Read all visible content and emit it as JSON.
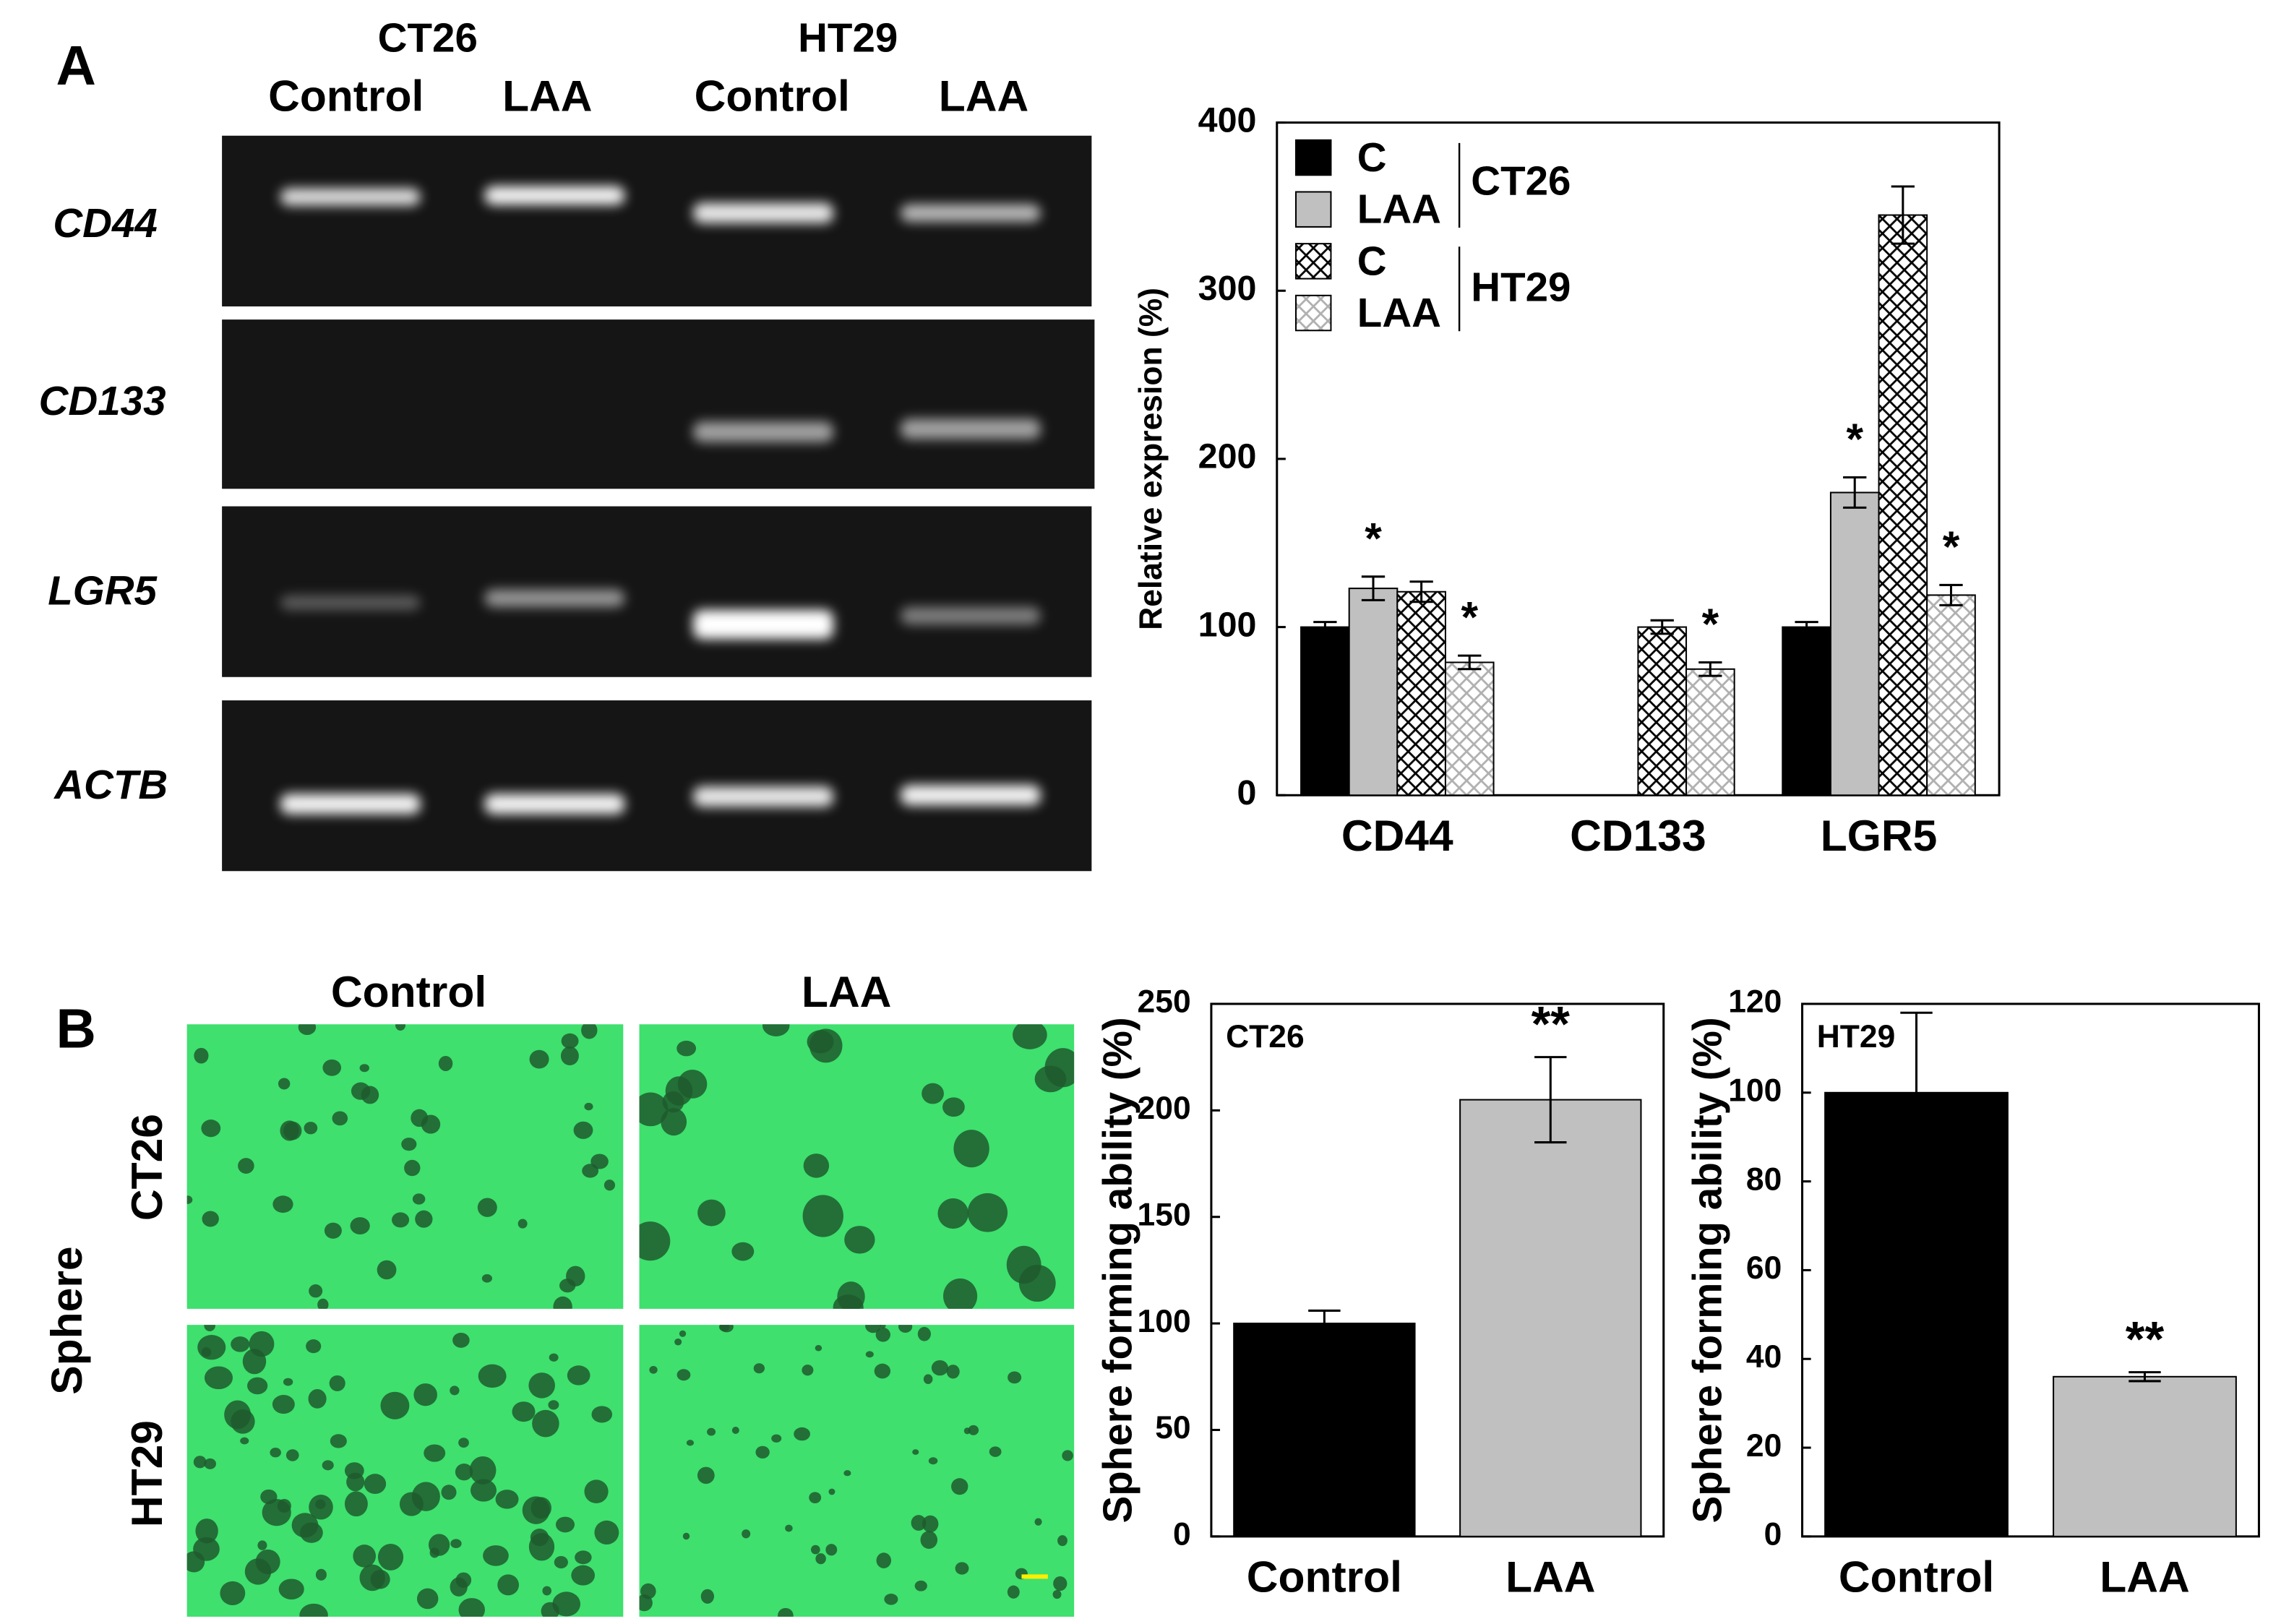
{
  "panel_a": {
    "label": "A",
    "cell_lines": [
      "CT26",
      "HT29"
    ],
    "lanes": [
      "Control",
      "LAA",
      "Control",
      "LAA"
    ],
    "genes": [
      "CD44",
      "CD133",
      "LGR5",
      "ACTB"
    ]
  },
  "panel_b": {
    "label": "B",
    "columns": [
      "Control",
      "LAA"
    ],
    "rows": [
      "CT26",
      "HT29"
    ],
    "side_label": "Sphere"
  },
  "chart_data": [
    {
      "type": "bar",
      "ylabel": "Relative expresion (%)",
      "categories": [
        "CD44",
        "CD133",
        "LGR5"
      ],
      "legend_groups": [
        "CT26",
        "HT29"
      ],
      "series": [
        {
          "name": "C",
          "color": "#000000",
          "pattern": "solid",
          "values": [
            100,
            null,
            100
          ],
          "errors": [
            3,
            null,
            3
          ]
        },
        {
          "name": "LAA",
          "color": "#c0c0c0",
          "pattern": "solid",
          "values": [
            123,
            null,
            180
          ],
          "errors": [
            7,
            null,
            9
          ],
          "significance": [
            "*",
            null,
            "*"
          ]
        },
        {
          "name": "C",
          "color": "#000000",
          "pattern": "crosshatch",
          "values": [
            121,
            100,
            345
          ],
          "errors": [
            6,
            4,
            17
          ]
        },
        {
          "name": "LAA",
          "color": "#b0b0b0",
          "pattern": "crosshatch",
          "values": [
            79,
            75,
            119
          ],
          "errors": [
            4,
            4,
            6
          ],
          "significance": [
            "*",
            "*",
            "*"
          ]
        }
      ],
      "ylim": [
        0,
        400
      ],
      "yticks": [
        0,
        100,
        200,
        300,
        400
      ]
    },
    {
      "type": "bar",
      "label": "CT26",
      "ylabel": "Sphere forming ability (%)",
      "categories": [
        "Control",
        "LAA"
      ],
      "values": [
        100,
        205
      ],
      "errors": [
        6,
        20
      ],
      "colors": [
        "#000000",
        "#c0c0c0"
      ],
      "significance": [
        null,
        "**"
      ],
      "ylim": [
        0,
        250
      ],
      "yticks": [
        0,
        50,
        100,
        150,
        200,
        250
      ]
    },
    {
      "type": "bar",
      "label": "HT29",
      "ylabel": "Sphere forming ability (%)",
      "categories": [
        "Control",
        "LAA"
      ],
      "values": [
        100,
        36
      ],
      "errors": [
        18,
        1
      ],
      "colors": [
        "#000000",
        "#c0c0c0"
      ],
      "significance": [
        null,
        "**"
      ],
      "ylim": [
        0,
        120
      ],
      "yticks": [
        0,
        20,
        40,
        60,
        80,
        100,
        120
      ]
    }
  ]
}
